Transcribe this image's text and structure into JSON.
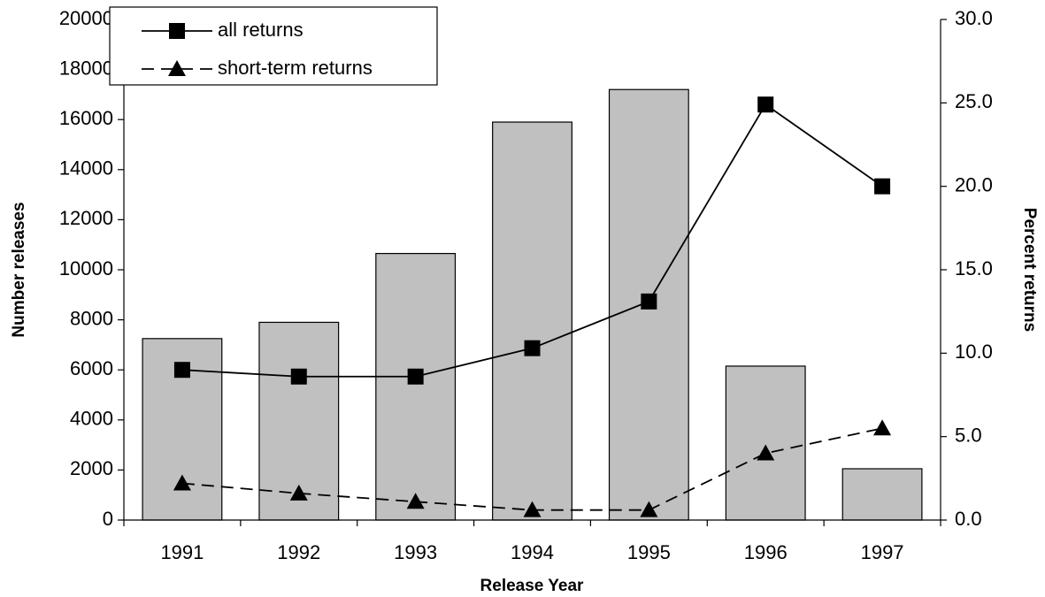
{
  "chart_data": {
    "type": "bar",
    "x_label": "Release Year",
    "y_label": "Number releases",
    "y2_label": "Percent returns",
    "categories": [
      "1991",
      "1992",
      "1993",
      "1994",
      "1995",
      "1996",
      "1997"
    ],
    "series": [
      {
        "type": "bar",
        "color": "#c0c0c0",
        "values": [
          7250,
          7900,
          10650,
          15900,
          17200,
          6150,
          2050
        ]
      },
      {
        "type": "line",
        "name": "all returns",
        "color": "#000000",
        "marker": "square",
        "dash": "solid",
        "axis": "y2",
        "values": [
          9.0,
          8.6,
          8.6,
          10.3,
          13.1,
          24.9,
          20.0
        ]
      },
      {
        "type": "line",
        "name": "short-term returns",
        "color": "#000000",
        "marker": "triangle",
        "dash": "dashed",
        "axis": "y2",
        "values": [
          2.2,
          1.6,
          1.1,
          0.6,
          0.6,
          4.0,
          5.5
        ]
      }
    ],
    "ylim": [
      0,
      20000
    ],
    "yticks": [
      0,
      2000,
      4000,
      6000,
      8000,
      10000,
      12000,
      14000,
      16000,
      18000,
      20000
    ],
    "y2lim": [
      0,
      30
    ],
    "y2ticks": [
      {
        "value": 0,
        "label": "0.0"
      },
      {
        "value": 5,
        "label": "5.0"
      },
      {
        "value": 10,
        "label": "10.0"
      },
      {
        "value": 15,
        "label": "15.0"
      },
      {
        "value": 20,
        "label": "20.0"
      },
      {
        "value": 25,
        "label": "25.0"
      },
      {
        "value": 30,
        "label": "30.0"
      }
    ],
    "grid": false,
    "legend": "upper left"
  }
}
